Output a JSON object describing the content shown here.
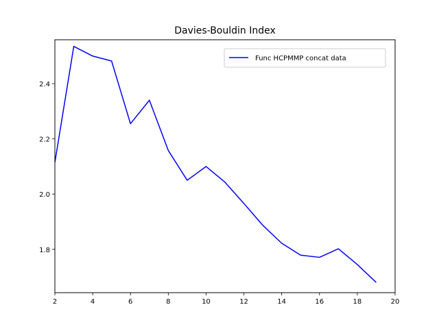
{
  "chart_data": {
    "type": "line",
    "title": "Davies-Bouldin Index",
    "xlabel": "",
    "ylabel": "",
    "xlim": [
      2,
      20
    ],
    "ylim": [
      1.643,
      2.559
    ],
    "xticks": [
      2,
      4,
      6,
      8,
      10,
      12,
      14,
      16,
      18,
      20
    ],
    "yticks": [
      1.8,
      2.0,
      2.2,
      2.4
    ],
    "x_tick_labels": [
      "2",
      "4",
      "6",
      "8",
      "10",
      "12",
      "14",
      "16",
      "18",
      "20"
    ],
    "y_tick_labels": [
      "1.8",
      "2.0",
      "2.2",
      "2.4"
    ],
    "grid": false,
    "legend_position": "top-right",
    "series": [
      {
        "name": "Func HCPMMP concat data",
        "color": "#0000ff",
        "x": [
          2,
          3,
          4,
          5,
          6,
          7,
          8,
          9,
          10,
          11,
          12,
          13,
          14,
          15,
          16,
          17,
          18,
          19
        ],
        "y": [
          2.115,
          2.535,
          2.5,
          2.482,
          2.255,
          2.34,
          2.158,
          2.05,
          2.1,
          2.043,
          1.966,
          1.887,
          1.822,
          1.779,
          1.771,
          1.802,
          1.745,
          1.68
        ]
      }
    ]
  }
}
